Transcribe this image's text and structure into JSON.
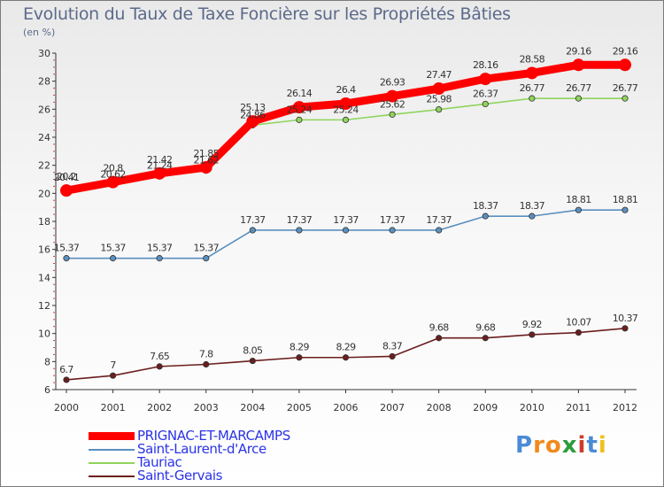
{
  "title": "Evolution du Taux de Taxe Foncière sur les Propriétés Bâties",
  "subtitle": "(en %)",
  "logo": {
    "text": "Proxiti",
    "colors": [
      "#4a8bd6",
      "#f08a1c",
      "#f08a1c",
      "#2e9c3e",
      "#d33a2c",
      "#4a8bd6",
      "#f0c01c"
    ]
  },
  "chart_data": {
    "type": "line",
    "title": "Evolution du Taux de Taxe Foncière sur les Propriétés Bâties",
    "ylabel": "(en %)",
    "xlabel": "",
    "ylim": [
      6,
      30
    ],
    "yticks": [
      6,
      8,
      10,
      12,
      14,
      16,
      18,
      20,
      22,
      24,
      26,
      28,
      30
    ],
    "categories": [
      "2000",
      "2001",
      "2002",
      "2003",
      "2004",
      "2005",
      "2006",
      "2007",
      "2008",
      "2009",
      "2010",
      "2011",
      "2012"
    ],
    "series": [
      {
        "name": "PRIGNAC-ET-MARCAMPS",
        "color": "#ff0000",
        "values": [
          20.2,
          20.8,
          21.42,
          21.85,
          25.13,
          26.14,
          26.4,
          26.93,
          27.47,
          28.16,
          28.58,
          29.16,
          29.16
        ],
        "labels": [
          "20.2",
          "20.8",
          "21.42",
          "21.85",
          "25.13",
          "26.14",
          "26.4",
          "26.93",
          "27.47",
          "28.16",
          "28.58",
          "29.16",
          "29.16"
        ]
      },
      {
        "name": "Saint-Laurent-d'Arce",
        "color": "#5b8fbf",
        "values": [
          15.37,
          15.37,
          15.37,
          15.37,
          17.37,
          17.37,
          17.37,
          17.37,
          17.37,
          18.37,
          18.37,
          18.81,
          18.81
        ],
        "labels": [
          "15.37",
          "15.37",
          "15.37",
          "15.37",
          "17.37",
          "17.37",
          "17.37",
          "17.37",
          "17.37",
          "18.37",
          "18.37",
          "18.81",
          "18.81"
        ]
      },
      {
        "name": "Tauriac",
        "color": "#8fd45c",
        "values": [
          20.41,
          20.62,
          21.24,
          21.62,
          24.86,
          25.24,
          25.24,
          25.62,
          25.98,
          26.37,
          26.77,
          26.77,
          26.77
        ],
        "labels": [
          "20.41",
          "20.62",
          "21.24",
          "21.62",
          "24.86",
          "25.24",
          "25.24",
          "25.62",
          "25.98",
          "26.37",
          "26.77",
          "26.77",
          "26.77"
        ]
      },
      {
        "name": "Saint-Gervais",
        "color": "#6b1e1e",
        "values": [
          6.7,
          7,
          7.65,
          7.8,
          8.05,
          8.29,
          8.29,
          8.37,
          9.68,
          9.68,
          9.92,
          10.07,
          10.37
        ],
        "labels": [
          "6.7",
          "7",
          "7.65",
          "7.8",
          "8.05",
          "8.29",
          "8.29",
          "8.37",
          "9.68",
          "9.68",
          "9.92",
          "10.07",
          "10.37"
        ]
      }
    ],
    "grid": false,
    "legend": "bottom-left"
  }
}
